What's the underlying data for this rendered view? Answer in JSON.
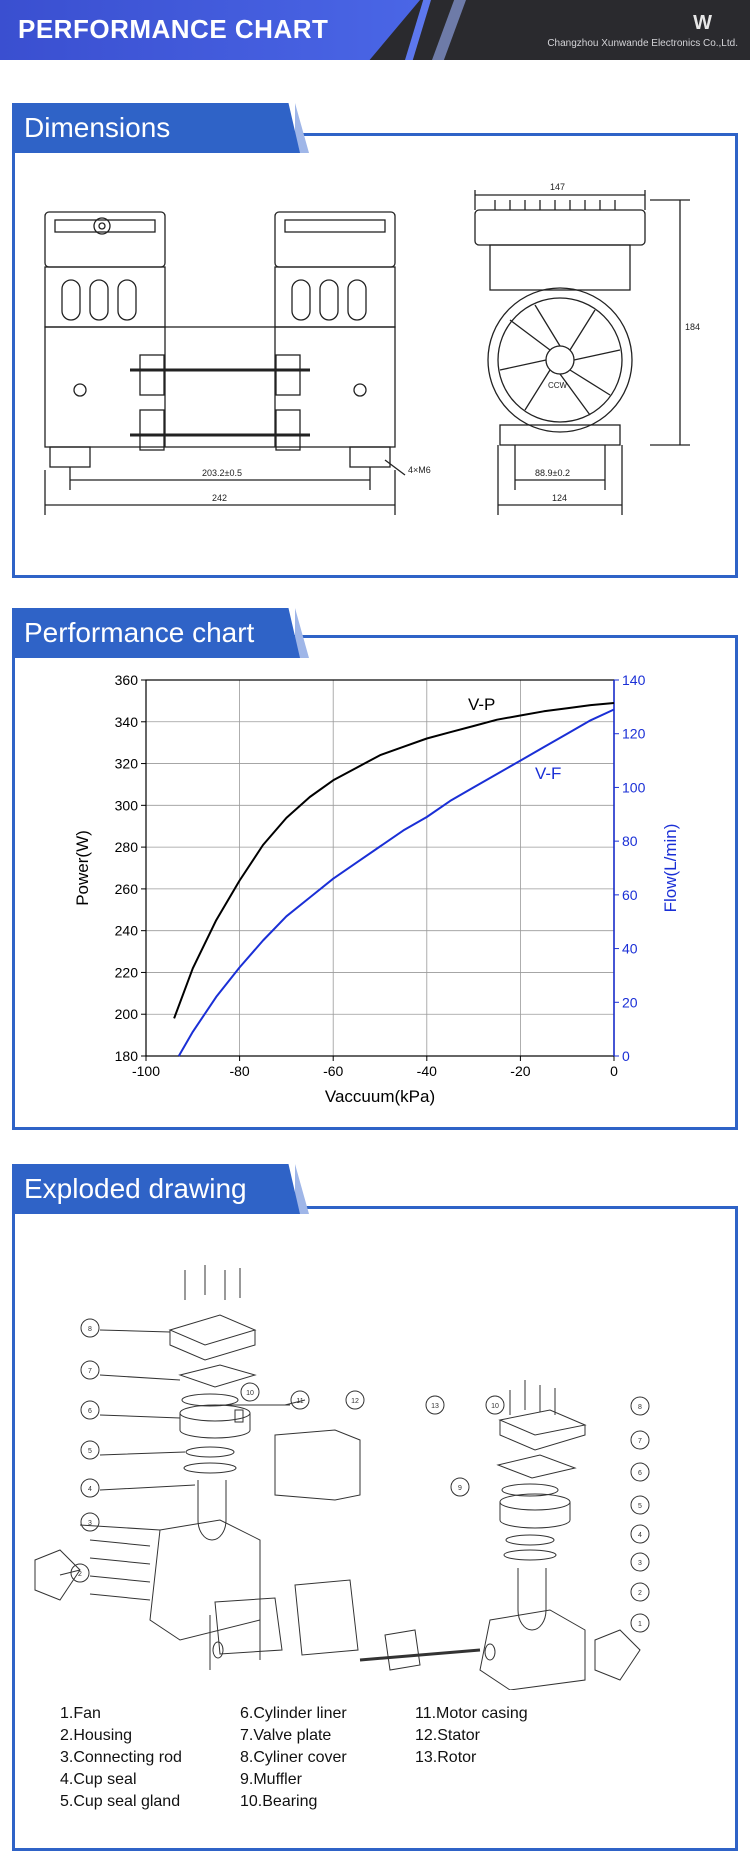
{
  "header": {
    "title": "PERFORMANCE CHART",
    "company": "Changzhou Xunwande Electronics Co.,Ltd."
  },
  "sections": {
    "dimensions": "Dimensions",
    "performance": "Performance chart",
    "exploded": "Exploded drawing"
  },
  "dimensions": {
    "front_inner": "203.2±0.5",
    "front_outer": "242",
    "holes": "4×M6",
    "side_top": "147",
    "side_height": "184",
    "side_inner": "88.9±0.2",
    "side_outer": "124",
    "fan_label": "CCW"
  },
  "chart_data": {
    "type": "line",
    "xlabel": "Vaccuum(kPa)",
    "ylabel": "Power(W)",
    "y2label": "Flow(L/min)",
    "xlim": [
      -100,
      0
    ],
    "ylim": [
      180,
      360
    ],
    "y2lim": [
      0,
      140
    ],
    "xticks": [
      "-100",
      "-80",
      "-60",
      "-40",
      "-20",
      "0"
    ],
    "yticks": [
      "180",
      "200",
      "220",
      "240",
      "260",
      "280",
      "300",
      "320",
      "340",
      "360"
    ],
    "y2ticks": [
      "0",
      "20",
      "40",
      "60",
      "80",
      "100",
      "120",
      "140"
    ],
    "grid": true,
    "series": [
      {
        "name": "V-P",
        "axis": "left",
        "color": "#000000",
        "x": [
          -94,
          -90,
          -85,
          -80,
          -75,
          -70,
          -65,
          -60,
          -55,
          -50,
          -45,
          -40,
          -35,
          -30,
          -25,
          -20,
          -15,
          -10,
          -5,
          0
        ],
        "y": [
          198,
          222,
          245,
          264,
          281,
          294,
          304,
          312,
          318,
          324,
          328,
          332,
          335,
          338,
          341,
          343,
          345,
          346.5,
          348,
          349
        ]
      },
      {
        "name": "V-F",
        "axis": "right",
        "color": "#1a2fd6",
        "x": [
          -93,
          -90,
          -85,
          -80,
          -75,
          -70,
          -65,
          -60,
          -55,
          -50,
          -45,
          -40,
          -35,
          -30,
          -25,
          -20,
          -15,
          -10,
          -5,
          0
        ],
        "y": [
          0,
          9,
          22,
          33,
          43,
          52,
          59,
          66,
          72,
          78,
          84,
          89,
          95,
          100,
          105,
          110,
          115,
          120,
          125,
          129
        ]
      }
    ]
  },
  "parts": {
    "col1": [
      "1.Fan",
      "2.Housing",
      "3.Connecting rod",
      "4.Cup seal",
      "5.Cup seal gland"
    ],
    "col2": [
      "6.Cylinder liner",
      "7.Valve plate",
      "8.Cyliner cover",
      "9.Muffler",
      "10.Bearing"
    ],
    "col3": [
      "11.Motor casing",
      "12.Stator",
      "13.Rotor"
    ]
  },
  "callouts": [
    "1",
    "2",
    "3",
    "4",
    "5",
    "6",
    "7",
    "8",
    "9",
    "10",
    "11",
    "12",
    "13"
  ]
}
